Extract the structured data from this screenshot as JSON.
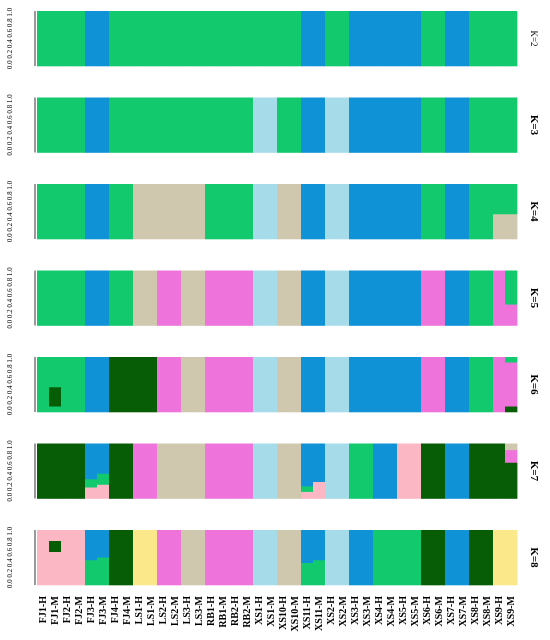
{
  "chart_data": {
    "type": "bar",
    "subtype": "stacked-structure-plot",
    "categories": [
      "FJ1-H",
      "FJ1-M",
      "FJ2-H",
      "FJ2-M",
      "FJ3-H",
      "FJ3-M",
      "FJ4-H",
      "FJ4-M",
      "LS1-H",
      "LS1-M",
      "LS2-H",
      "LS2-M",
      "LS3-H",
      "LS3-M",
      "RB1-H",
      "RB1-M",
      "RB2-H",
      "RB2-M",
      "XS1-H",
      "XS1-M",
      "XS10-H",
      "XS10-M",
      "XS11-H",
      "XS11-M",
      "XS2-H",
      "XS2-M",
      "XS3-H",
      "XS3-M",
      "XS4-H",
      "XS4-M",
      "XS5-H",
      "XS5-M",
      "XS6-H",
      "XS6-M",
      "XS7-H",
      "XS7-M",
      "XS8-H",
      "XS8-M",
      "XS9-H",
      "XS9-M"
    ],
    "yticks": [
      "0.0",
      "0.2",
      "0.4",
      "0.6",
      "0.8",
      "1.0"
    ],
    "ylim": [
      0,
      1
    ],
    "xlabel": "",
    "ylabel": "",
    "grid": false,
    "legend": "none",
    "colors": {
      "G": "#12c96e",
      "B": "#0f92d6",
      "L": "#a6dbe9",
      "T": "#d0c8ae",
      "M": "#ee74dc",
      "D": "#075d06",
      "P": "#fbb7c3",
      "Y": "#fbe88b"
    },
    "panels": [
      {
        "label": "K=2",
        "columns": [
          "G",
          "G",
          "G",
          "G",
          "B",
          "B",
          "G",
          "G",
          "G",
          "G",
          "G",
          "G",
          "G",
          "G",
          "G",
          "G",
          "G",
          "G",
          "G",
          "G",
          "G",
          "G",
          "B",
          "B",
          "G",
          "G",
          "B",
          "B",
          "B",
          "B",
          "B",
          "B",
          "G",
          "G",
          "B",
          "B",
          "G",
          "G",
          "G",
          "G"
        ]
      },
      {
        "label": "K=3",
        "columns": [
          "G",
          "G",
          "G",
          "G",
          "B",
          "B",
          "G",
          "G",
          "G",
          "G",
          "G",
          "G",
          "G",
          "G",
          "G",
          "G",
          "G",
          "G",
          "L",
          "L",
          "G",
          "G",
          "B",
          "B",
          "L",
          "L",
          "B",
          "B",
          "B",
          "B",
          "B",
          "B",
          "G",
          "G",
          "B",
          "B",
          "G",
          "G",
          "G",
          "G"
        ]
      },
      {
        "label": "K=4",
        "columns": [
          "G",
          "G",
          "G",
          "G",
          "B",
          "B",
          "G",
          "G",
          "T",
          "T",
          "T",
          "T",
          "T",
          "T",
          "G",
          "G",
          "G",
          "G",
          "L",
          "L",
          "T",
          "T",
          "B",
          "B",
          "L",
          "L",
          "B",
          "B",
          "B",
          "B",
          "B",
          "B",
          "G",
          "G",
          "B",
          "B",
          "G",
          "G",
          [
            [
              "G",
              0.55
            ],
            [
              "T",
              0.45
            ]
          ],
          [
            [
              "G",
              0.55
            ],
            [
              "T",
              0.45
            ]
          ]
        ]
      },
      {
        "label": "K=5",
        "columns": [
          "G",
          "G",
          "G",
          "G",
          "B",
          "B",
          "G",
          "G",
          "T",
          "T",
          "M",
          "M",
          "T",
          "T",
          "M",
          "M",
          "M",
          "M",
          "L",
          "L",
          "T",
          "T",
          "B",
          "B",
          "L",
          "L",
          "B",
          "B",
          "B",
          "B",
          "B",
          "B",
          "M",
          "M",
          "B",
          "B",
          "G",
          "G",
          "M",
          [
            [
              "G",
              0.62
            ],
            [
              "M",
              0.38
            ]
          ]
        ]
      },
      {
        "label": "K=6",
        "columns": [
          "G",
          [
            [
              "G",
              0.55
            ],
            [
              "D",
              0.35
            ],
            [
              "G",
              0.1
            ]
          ],
          "G",
          "G",
          "B",
          "B",
          "D",
          "D",
          "D",
          "D",
          "M",
          "M",
          "T",
          "T",
          "M",
          "M",
          "M",
          "M",
          "L",
          "L",
          "T",
          "T",
          "B",
          "B",
          "L",
          "L",
          "B",
          "B",
          "B",
          "B",
          "B",
          "B",
          "M",
          "M",
          "B",
          "B",
          "G",
          "G",
          "M",
          [
            [
              "G",
              0.1
            ],
            [
              "M",
              0.8
            ],
            [
              "D",
              0.1
            ]
          ]
        ]
      },
      {
        "label": "K=7",
        "columns": [
          "D",
          "D",
          "D",
          "D",
          [
            [
              "B",
              0.65
            ],
            [
              "G",
              0.15
            ],
            [
              "P",
              0.2
            ]
          ],
          [
            [
              "B",
              0.55
            ],
            [
              "G",
              0.2
            ],
            [
              "P",
              0.25
            ]
          ],
          "D",
          "D",
          "M",
          "M",
          "T",
          "T",
          "T",
          "T",
          "M",
          "M",
          "M",
          "M",
          "L",
          "L",
          "T",
          "T",
          [
            [
              "B",
              0.78
            ],
            [
              "G",
              0.1
            ],
            [
              "P",
              0.12
            ]
          ],
          [
            [
              "B",
              0.7
            ],
            [
              "P",
              0.3
            ]
          ],
          "L",
          "L",
          "G",
          "G",
          "B",
          "B",
          "P",
          "P",
          "D",
          "D",
          "B",
          "B",
          "D",
          "D",
          "D",
          [
            [
              "T",
              0.12
            ],
            [
              "M",
              0.23
            ],
            [
              "D",
              0.65
            ]
          ]
        ]
      },
      {
        "label": "K=8",
        "columns": [
          "P",
          [
            [
              "P",
              0.2
            ],
            [
              "D",
              0.2
            ],
            [
              "P",
              0.6
            ]
          ],
          "P",
          "P",
          [
            [
              "B",
              0.55
            ],
            [
              "G",
              0.45
            ]
          ],
          [
            [
              "B",
              0.5
            ],
            [
              "G",
              0.5
            ]
          ],
          "D",
          "D",
          "Y",
          "Y",
          "M",
          "M",
          "T",
          "T",
          "M",
          "M",
          "M",
          "M",
          "L",
          "L",
          "T",
          "T",
          [
            [
              "B",
              0.6
            ],
            [
              "G",
              0.4
            ]
          ],
          [
            [
              "B",
              0.55
            ],
            [
              "G",
              0.45
            ]
          ],
          "L",
          "L",
          "B",
          "B",
          "G",
          "G",
          "G",
          "G",
          "D",
          "D",
          "B",
          "B",
          "D",
          "D",
          "Y",
          "Y"
        ]
      }
    ]
  }
}
